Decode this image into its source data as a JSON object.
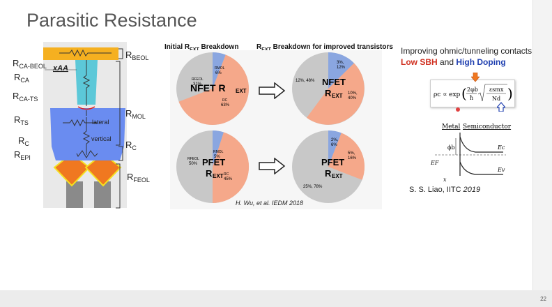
{
  "title": "Parasitic Resistance",
  "diagram": {
    "view_label": "xAA",
    "labels": {
      "rca_beol": {
        "main": "R",
        "sub": "CA-BEOL"
      },
      "rbeol": {
        "main": "R",
        "sub": "BEOL"
      },
      "rca": {
        "main": "R",
        "sub": "CA"
      },
      "rca_ts": {
        "main": "R",
        "sub": "CA-TS"
      },
      "rmol": {
        "main": "R",
        "sub": "MOL"
      },
      "rts": {
        "main": "R",
        "sub": "TS"
      },
      "rc_left": {
        "main": "R",
        "sub": "C"
      },
      "rc_right": {
        "main": "R",
        "sub": "C"
      },
      "repi": {
        "main": "R",
        "sub": "EPI"
      },
      "rfeol": {
        "main": "R",
        "sub": "FEOL"
      }
    },
    "inner": {
      "lateral": "lateral",
      "vertical": "vertical"
    }
  },
  "headers": {
    "initial": {
      "pre": "Initial R",
      "sub": "EXT",
      "post": " Breakdown"
    },
    "improved": {
      "pre": "R",
      "sub": "EXT",
      "post": " Breakdown for improved transistors"
    }
  },
  "pies": {
    "nfet_initial": {
      "title1": "NFET R",
      "title1_sub": "EXT",
      "title2": "",
      "feol": "RFEOL",
      "feol_pct": "31%",
      "mol": "RMOL",
      "mol_pct": "6%",
      "c": "RC",
      "c_pct": "63%"
    },
    "nfet_improved": {
      "title1": "NFET",
      "title2": "R",
      "title2_sub": "EXT",
      "left": "12%, 48%",
      "top": "3%,",
      "top2": "12%",
      "right": "10%,",
      "right2": "40%"
    },
    "pfet_initial": {
      "title1": "PFET",
      "title2": "R",
      "title2_sub": "EXT",
      "feol": "RFEOL",
      "feol_pct": "50%",
      "mol": "RMOL",
      "mol_pct": "5%",
      "c": "RC",
      "c_pct": "45%"
    },
    "pfet_improved": {
      "title1": "PFET",
      "title2": "R",
      "title2_sub": "EXT",
      "left": "25%, 78%",
      "top": "2%,",
      "top2": "6%",
      "right": "5%,",
      "right2": "16%"
    }
  },
  "citation_left": "H. Wu, et al. IEDM 2018",
  "right_panel": {
    "heading": "Improving ohmic/tunneling contacts:",
    "low_sbh": "Low SBH",
    "and": " and ",
    "high_doping": "High Doping",
    "formula_lhs": "ρc ∝ exp",
    "formula_num": "2φb",
    "formula_den": "ħ",
    "formula_sqrt_num": "εsmx",
    "formula_sqrt_den": "Nd",
    "band_metal": "Metal",
    "band_semi": "Semiconductor",
    "band_phib": "ϕb",
    "band_ec": "Ec",
    "band_ef": "EF",
    "band_ev": "Ev",
    "band_x": "x",
    "citation": "S. S. Liao, IITC ",
    "citation_year": "2019"
  },
  "slide_number": "22",
  "colors": {
    "feol_gray": "#c8c8c8",
    "rc_salmon": "#f5a88a",
    "mol_blue": "#8aa6e0",
    "beol_gold": "#f5b020",
    "ca_cyan": "#5cc8d8",
    "mol_block_blue": "#6a8cf0",
    "epi_orange": "#f07820",
    "arrow_orange": "#f07820"
  }
}
